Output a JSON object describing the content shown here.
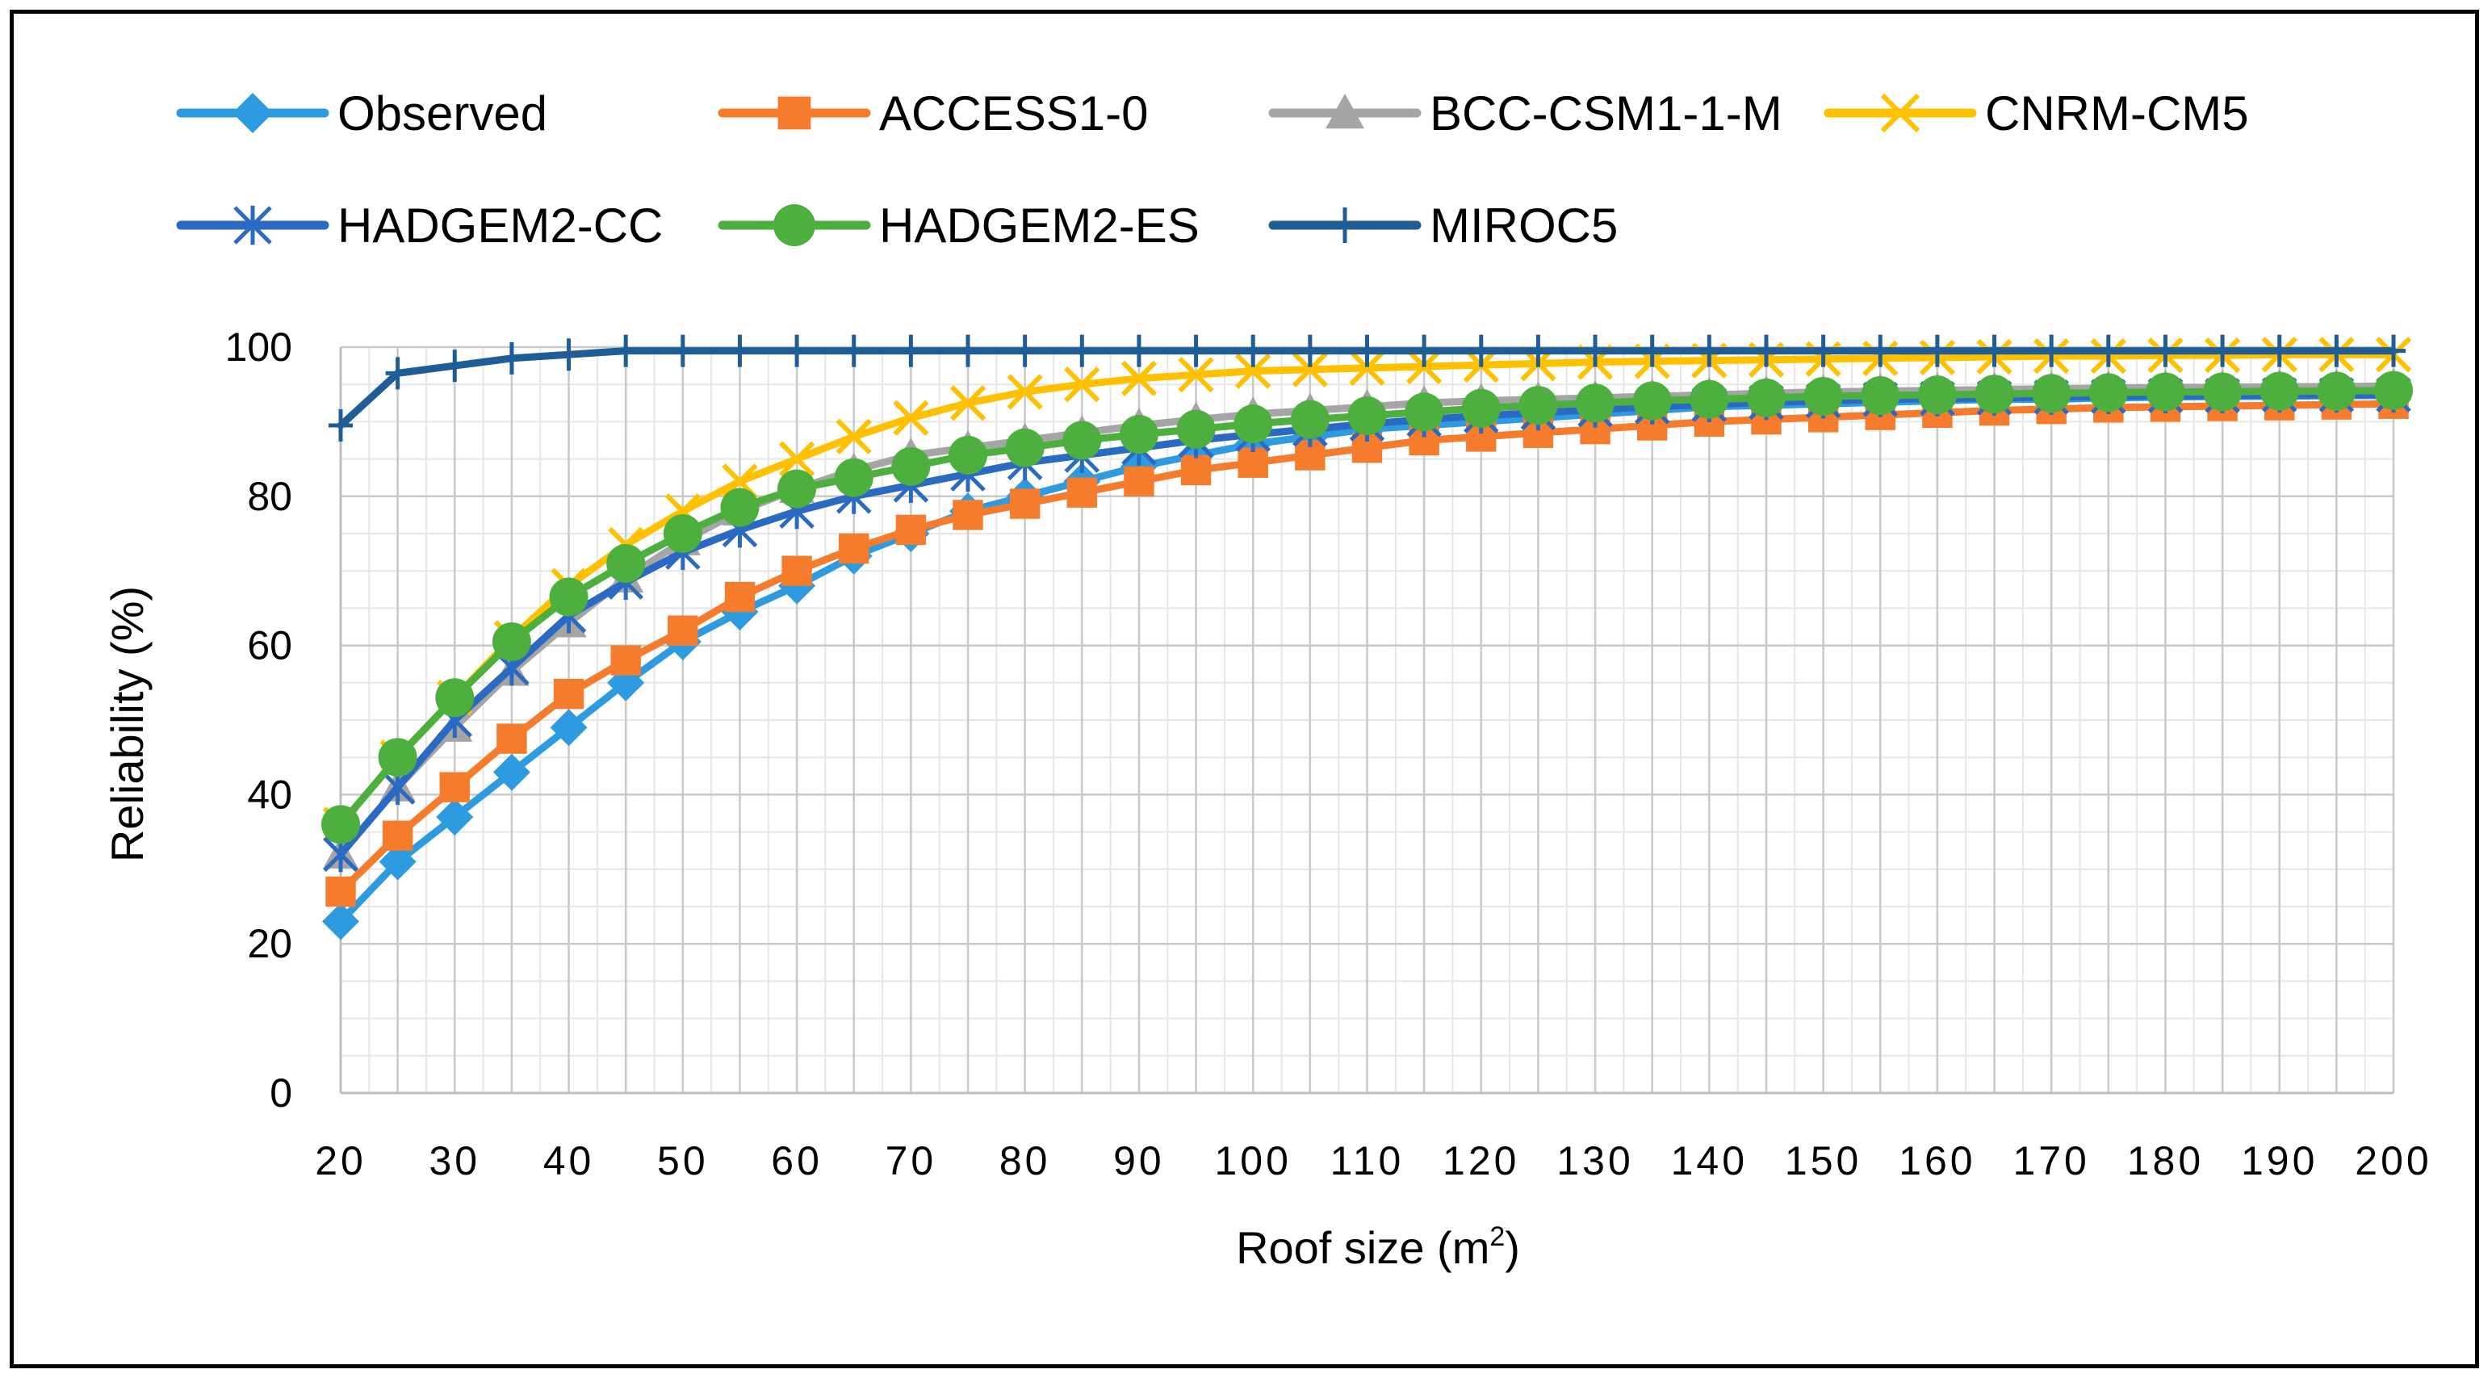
{
  "chart_data": {
    "type": "line",
    "title": "",
    "xlabel": "Roof size (m",
    "xlabel_sup": "2",
    "xlabel_close": ")",
    "ylabel": "Reliability (%)",
    "xlim": [
      20,
      200
    ],
    "ylim": [
      0,
      100
    ],
    "x_ticks": [
      20,
      30,
      40,
      50,
      60,
      70,
      80,
      90,
      100,
      110,
      120,
      130,
      140,
      150,
      160,
      170,
      180,
      190,
      200
    ],
    "y_ticks": [
      0,
      20,
      40,
      60,
      80,
      100
    ],
    "x_tick_labels": [
      "20",
      "30",
      "40",
      "50",
      "60",
      "70",
      "80",
      "90",
      "100",
      "110",
      "120",
      "130",
      "140",
      "150",
      "160",
      "170",
      "180",
      "190",
      "200"
    ],
    "y_tick_labels": [
      "0",
      "20",
      "40",
      "60",
      "80",
      "100"
    ],
    "grid": true,
    "legend_position": "top",
    "x": [
      20,
      25,
      30,
      35,
      40,
      45,
      50,
      55,
      60,
      65,
      70,
      75,
      80,
      85,
      90,
      95,
      100,
      105,
      110,
      115,
      120,
      125,
      130,
      135,
      140,
      145,
      150,
      155,
      160,
      165,
      170,
      175,
      180,
      185,
      190,
      195,
      200
    ],
    "series": [
      {
        "name": "Observed",
        "color": "#2e9be0",
        "marker": "diamond",
        "values": [
          23,
          31,
          37,
          43,
          49,
          55,
          60.5,
          64.5,
          68,
          72,
          75,
          78,
          80,
          82,
          84,
          85.5,
          87,
          88,
          89,
          89.5,
          90,
          90.5,
          91,
          91.5,
          92,
          92.2,
          92.4,
          92.6,
          92.8,
          93,
          93,
          93.2,
          93.3,
          93.4,
          93.4,
          93.5,
          93.5
        ]
      },
      {
        "name": "ACCESS1-0",
        "color": "#f47c2c",
        "marker": "square",
        "values": [
          27,
          34.5,
          41,
          47.5,
          53.5,
          58,
          62,
          66.5,
          70,
          73,
          75.5,
          77.5,
          79,
          80.5,
          82,
          83.5,
          84.5,
          85.5,
          86.5,
          87.5,
          88,
          88.5,
          89,
          89.5,
          90,
          90.3,
          90.6,
          90.9,
          91.2,
          91.5,
          91.7,
          91.9,
          92,
          92.1,
          92.2,
          92.3,
          92.4
        ]
      },
      {
        "name": "BCC-CSM1-1-M",
        "color": "#a5a5a5",
        "marker": "triangle",
        "values": [
          32,
          41,
          49,
          56.5,
          63,
          69,
          74,
          78,
          81,
          83.5,
          85.5,
          86.5,
          87.5,
          88.5,
          89.5,
          90.3,
          91,
          91.5,
          92,
          92.5,
          92.8,
          93,
          93.2,
          93.4,
          93.6,
          93.8,
          94,
          94.1,
          94.2,
          94.3,
          94.4,
          94.5,
          94.6,
          94.6,
          94.7,
          94.7,
          94.8
        ]
      },
      {
        "name": "CNRM-CM5",
        "color": "#ffc000",
        "marker": "x",
        "values": [
          36,
          45,
          53,
          61,
          68,
          73.5,
          78,
          82,
          85,
          88,
          90.5,
          92.5,
          94,
          95,
          95.8,
          96.3,
          96.8,
          97,
          97.2,
          97.4,
          97.6,
          97.8,
          98,
          98.1,
          98.2,
          98.3,
          98.4,
          98.5,
          98.6,
          98.7,
          98.8,
          98.8,
          98.9,
          98.9,
          99,
          99,
          99
        ]
      },
      {
        "name": "HADGEM2-CC",
        "color": "#2b6ac2",
        "marker": "asterisk",
        "values": [
          32,
          41,
          50,
          57,
          64,
          68.5,
          72.5,
          75.5,
          78,
          80,
          81.5,
          83,
          84.5,
          85.5,
          86.5,
          87.5,
          88.3,
          89,
          89.7,
          90.3,
          90.8,
          91.2,
          91.6,
          92,
          92.3,
          92.6,
          92.8,
          93,
          93.1,
          93.2,
          93.3,
          93.4,
          93.5,
          93.5,
          93.6,
          93.6,
          93.6
        ]
      },
      {
        "name": "HADGEM2-ES",
        "color": "#4caf3e",
        "marker": "circle",
        "values": [
          36,
          45,
          53,
          60.5,
          66.5,
          71,
          75,
          78.5,
          81,
          82.5,
          84,
          85.5,
          86.5,
          87.5,
          88.3,
          89,
          89.7,
          90.3,
          90.8,
          91.3,
          91.8,
          92.2,
          92.5,
          92.8,
          93,
          93.2,
          93.4,
          93.5,
          93.6,
          93.7,
          93.8,
          93.9,
          94,
          94,
          94.1,
          94.1,
          94.2
        ]
      },
      {
        "name": "MIROC5",
        "color": "#1f5d96",
        "marker": "plus",
        "values": [
          89.5,
          96.5,
          97.5,
          98.5,
          99,
          99.5,
          99.5,
          99.5,
          99.5,
          99.5,
          99.5,
          99.5,
          99.5,
          99.5,
          99.5,
          99.5,
          99.5,
          99.5,
          99.5,
          99.5,
          99.5,
          99.5,
          99.5,
          99.5,
          99.5,
          99.5,
          99.5,
          99.5,
          99.5,
          99.5,
          99.5,
          99.5,
          99.5,
          99.5,
          99.5,
          99.5,
          99.5
        ]
      }
    ]
  }
}
